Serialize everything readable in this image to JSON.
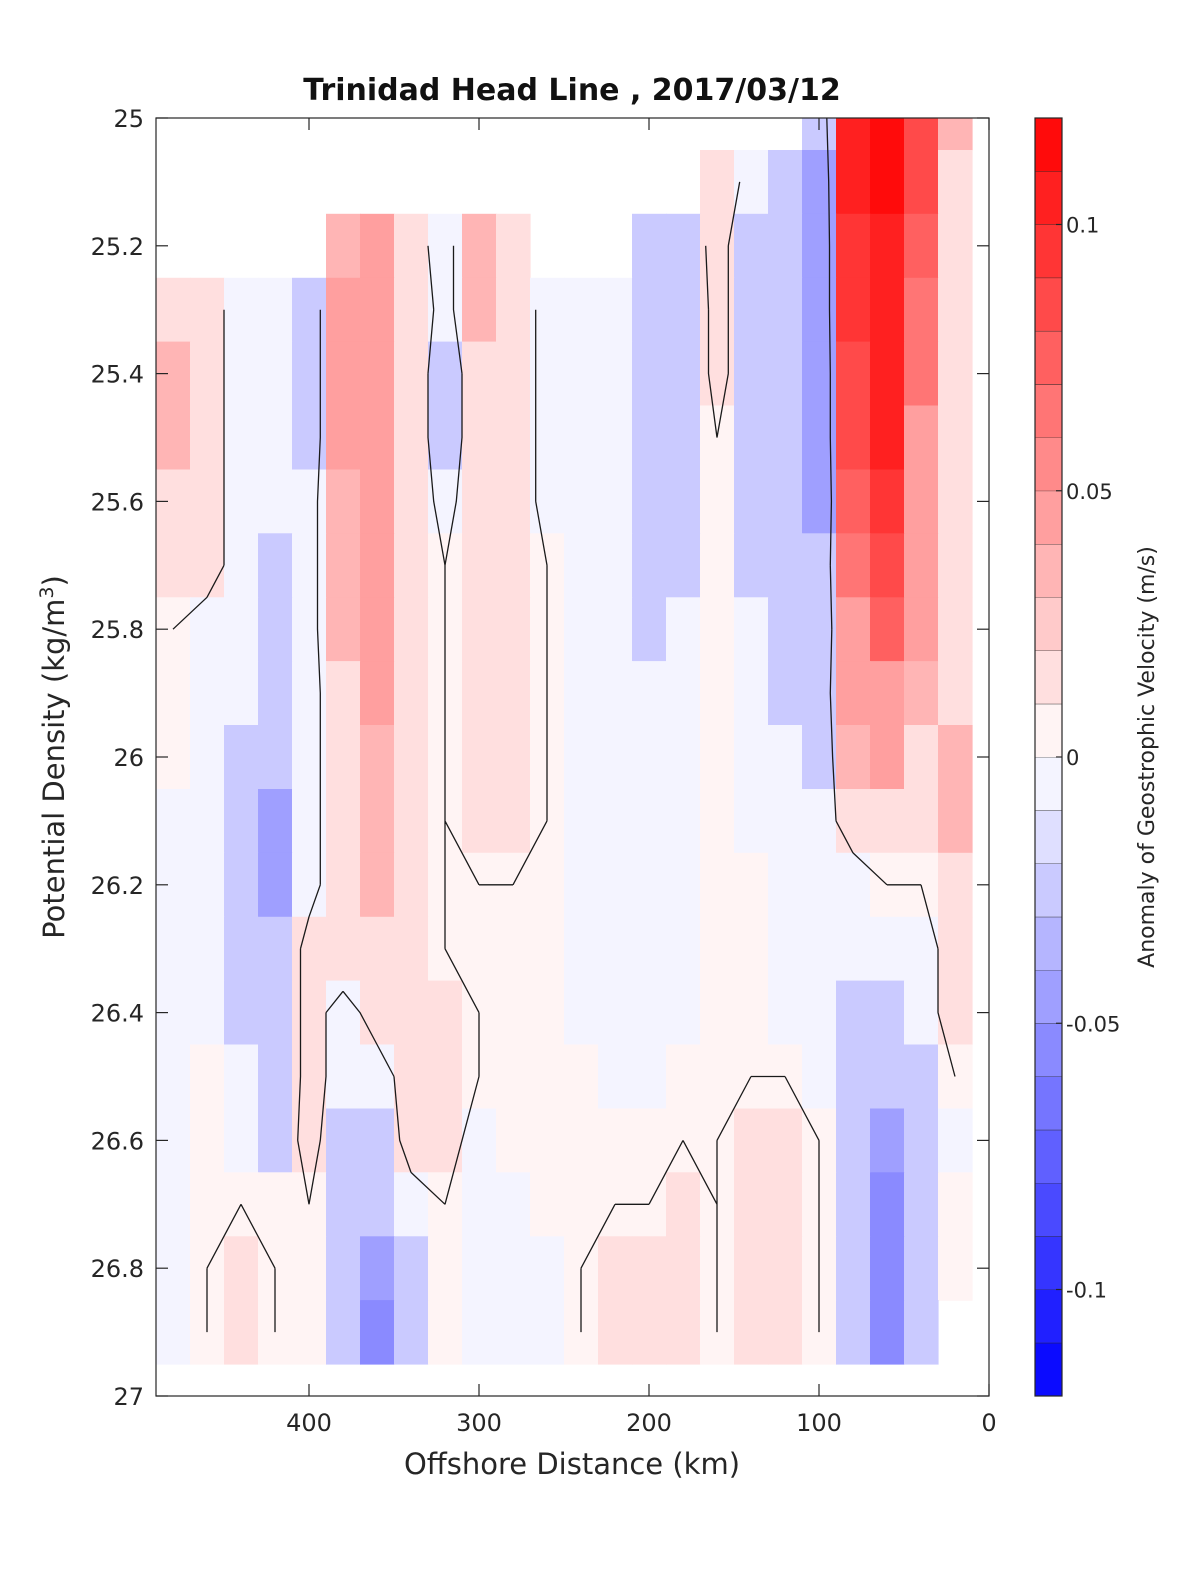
{
  "chart_data": {
    "type": "contourf",
    "title": "Trinidad Head Line , 2017/03/12",
    "xlabel": "Offshore Distance (km)",
    "ylabel": "Potential Density (kg/m",
    "ylabel_sup": "3",
    "ylabel_close": ")",
    "xlim": [
      490,
      0
    ],
    "ylim": [
      25,
      27
    ],
    "x_reversed": true,
    "y_reversed": true,
    "x_ticks": [
      400,
      300,
      200,
      100,
      0
    ],
    "y_ticks": [
      25,
      25.2,
      25.4,
      25.6,
      25.8,
      26,
      26.2,
      26.4,
      26.6,
      26.8,
      27
    ],
    "y_tick_labels": [
      "25",
      "25.2",
      "25.4",
      "25.6",
      "25.8",
      "26",
      "26.2",
      "26.4",
      "26.6",
      "26.8",
      "27"
    ],
    "colorbar": {
      "label": "Anomaly of Geostrophic Velocity (m/s)",
      "range": [
        -0.12,
        0.12
      ],
      "levels": 24,
      "ticks": [
        0.1,
        0.05,
        0,
        -0.05,
        -0.1
      ],
      "tick_labels": [
        "0.1",
        "0.05",
        "0",
        "-0.05",
        "-0.1"
      ],
      "colormap": "blue-white-red",
      "color_max": "#ff0000",
      "color_min": "#0000ff",
      "color_mid": "#ffffff"
    },
    "field": {
      "x": [
        480,
        460,
        440,
        420,
        400,
        380,
        360,
        340,
        320,
        300,
        280,
        260,
        240,
        220,
        200,
        180,
        160,
        140,
        120,
        100,
        80,
        60,
        40,
        20
      ],
      "y": [
        25.0,
        25.1,
        25.2,
        25.3,
        25.4,
        25.5,
        25.6,
        25.7,
        25.8,
        25.9,
        26.0,
        26.1,
        26.2,
        26.3,
        26.4,
        26.5,
        26.6,
        26.7,
        26.8,
        26.9
      ],
      "values": [
        [
          null,
          null,
          null,
          null,
          null,
          null,
          null,
          null,
          null,
          null,
          null,
          null,
          null,
          null,
          null,
          null,
          null,
          null,
          null,
          -0.03,
          0.1,
          0.12,
          0.08,
          0.03
        ],
        [
          null,
          null,
          null,
          null,
          null,
          null,
          null,
          null,
          null,
          null,
          null,
          null,
          null,
          null,
          null,
          null,
          0.02,
          -0.01,
          -0.02,
          -0.04,
          0.1,
          0.12,
          0.08,
          0.02
        ],
        [
          null,
          null,
          null,
          null,
          null,
          0.03,
          0.05,
          0.01,
          -0.01,
          0.03,
          0.02,
          null,
          null,
          null,
          -0.02,
          -0.02,
          0.01,
          -0.02,
          -0.03,
          -0.04,
          0.09,
          0.11,
          0.07,
          0.02
        ],
        [
          0.02,
          0.01,
          -0.01,
          -0.01,
          -0.02,
          0.04,
          0.05,
          0.02,
          -0.01,
          0.03,
          0.02,
          -0.01,
          -0.01,
          -0.01,
          -0.02,
          -0.03,
          0.01,
          -0.02,
          -0.03,
          -0.04,
          0.09,
          0.11,
          0.06,
          0.02
        ],
        [
          0.03,
          0.01,
          -0.01,
          -0.01,
          -0.02,
          0.04,
          0.05,
          0.02,
          -0.02,
          0.02,
          0.02,
          -0.01,
          -0.01,
          -0.01,
          -0.02,
          -0.03,
          0.01,
          -0.02,
          -0.03,
          -0.04,
          0.08,
          0.1,
          0.06,
          0.02
        ],
        [
          0.03,
          0.01,
          -0.01,
          -0.01,
          -0.02,
          0.04,
          0.05,
          0.02,
          -0.02,
          0.02,
          0.02,
          -0.01,
          -0.01,
          -0.01,
          -0.02,
          -0.02,
          0.0,
          -0.02,
          -0.03,
          -0.04,
          0.08,
          0.1,
          0.05,
          0.02
        ],
        [
          0.02,
          0.01,
          -0.01,
          -0.01,
          -0.01,
          0.03,
          0.05,
          0.02,
          -0.01,
          0.02,
          0.02,
          -0.01,
          -0.01,
          -0.01,
          -0.02,
          -0.02,
          0.0,
          -0.02,
          -0.03,
          -0.04,
          0.07,
          0.09,
          0.05,
          0.02
        ],
        [
          0.02,
          0.01,
          -0.01,
          -0.02,
          -0.01,
          0.03,
          0.05,
          0.02,
          0.0,
          0.02,
          0.02,
          0.0,
          -0.01,
          -0.01,
          -0.02,
          -0.02,
          0.0,
          -0.02,
          -0.02,
          -0.03,
          0.06,
          0.08,
          0.04,
          0.02
        ],
        [
          0.0,
          -0.01,
          -0.01,
          -0.02,
          -0.01,
          0.03,
          0.04,
          0.02,
          0.0,
          0.02,
          0.02,
          0.0,
          -0.01,
          -0.01,
          -0.02,
          -0.01,
          0.0,
          -0.01,
          -0.02,
          -0.03,
          0.05,
          0.07,
          0.04,
          0.02
        ],
        [
          0.0,
          -0.01,
          -0.01,
          -0.03,
          -0.01,
          0.02,
          0.04,
          0.02,
          0.0,
          0.02,
          0.02,
          0.0,
          -0.01,
          -0.01,
          -0.01,
          -0.01,
          0.0,
          -0.01,
          -0.02,
          -0.02,
          0.04,
          0.05,
          0.03,
          0.02
        ],
        [
          0.0,
          -0.01,
          -0.02,
          -0.03,
          -0.01,
          0.02,
          0.03,
          0.02,
          0.0,
          0.01,
          0.01,
          0.0,
          -0.01,
          -0.01,
          -0.01,
          -0.01,
          0.0,
          -0.01,
          -0.01,
          -0.02,
          0.03,
          0.04,
          0.02,
          0.03
        ],
        [
          -0.01,
          -0.01,
          -0.02,
          -0.04,
          -0.01,
          0.02,
          0.03,
          0.02,
          0.0,
          0.01,
          0.01,
          0.0,
          -0.01,
          -0.01,
          -0.01,
          -0.01,
          0.0,
          -0.01,
          -0.01,
          -0.01,
          0.01,
          0.02,
          0.01,
          0.03
        ],
        [
          -0.01,
          -0.01,
          -0.02,
          -0.04,
          -0.01,
          0.02,
          0.03,
          0.02,
          0.0,
          0.0,
          0.0,
          0.0,
          -0.01,
          -0.01,
          -0.01,
          -0.01,
          0.0,
          0.0,
          -0.01,
          -0.01,
          -0.01,
          0.0,
          0.0,
          0.02
        ],
        [
          -0.01,
          -0.01,
          -0.02,
          -0.03,
          0.01,
          0.02,
          0.02,
          0.02,
          0.0,
          0.0,
          0.0,
          0.0,
          -0.01,
          -0.01,
          -0.01,
          -0.01,
          0.0,
          0.0,
          -0.01,
          -0.01,
          -0.01,
          -0.01,
          -0.01,
          0.01
        ],
        [
          -0.01,
          -0.01,
          -0.02,
          -0.03,
          0.01,
          -0.01,
          0.01,
          0.02,
          0.01,
          0.0,
          0.0,
          0.0,
          -0.01,
          -0.01,
          -0.01,
          -0.01,
          0.0,
          0.0,
          -0.01,
          -0.01,
          -0.02,
          -0.03,
          -0.01,
          0.01
        ],
        [
          -0.01,
          0.0,
          -0.01,
          -0.03,
          0.01,
          -0.01,
          -0.01,
          0.01,
          0.01,
          0.0,
          0.0,
          0.0,
          0.0,
          -0.01,
          -0.01,
          0.0,
          0.0,
          0.0,
          0.0,
          -0.01,
          -0.02,
          -0.03,
          -0.02,
          0.0
        ],
        [
          -0.01,
          0.0,
          -0.01,
          -0.02,
          0.01,
          -0.02,
          -0.02,
          0.01,
          0.01,
          -0.01,
          0.0,
          0.0,
          0.0,
          0.0,
          0.0,
          0.0,
          0.0,
          0.01,
          0.01,
          0.0,
          -0.03,
          -0.04,
          -0.02,
          -0.01
        ],
        [
          -0.01,
          0.0,
          0.0,
          0.0,
          0.0,
          -0.02,
          -0.03,
          -0.01,
          0.0,
          -0.01,
          -0.01,
          0.0,
          0.0,
          0.0,
          0.0,
          0.01,
          0.0,
          0.01,
          0.01,
          0.0,
          -0.03,
          -0.05,
          -0.02,
          0.0
        ],
        [
          -0.01,
          0.0,
          0.01,
          0.0,
          0.0,
          -0.02,
          -0.04,
          -0.02,
          0.0,
          -0.01,
          -0.01,
          -0.01,
          0.0,
          0.01,
          0.01,
          0.01,
          0.0,
          0.01,
          0.01,
          0.0,
          -0.02,
          -0.05,
          -0.02,
          0.0
        ],
        [
          -0.01,
          0.0,
          0.01,
          0.0,
          0.0,
          -0.02,
          -0.05,
          -0.02,
          0.0,
          -0.01,
          -0.01,
          -0.01,
          0.0,
          0.01,
          0.01,
          0.01,
          0.0,
          0.01,
          0.01,
          0.0,
          -0.02,
          -0.05,
          -0.02,
          null
        ]
      ]
    }
  }
}
